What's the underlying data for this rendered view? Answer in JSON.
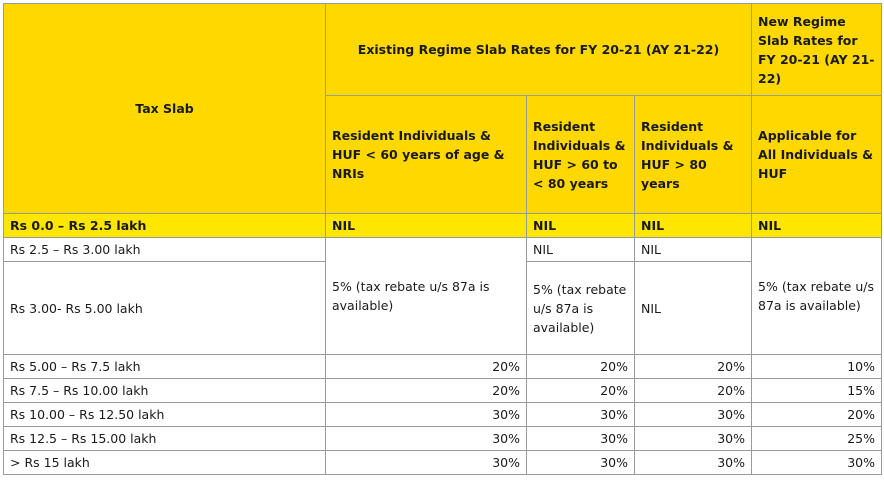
{
  "header": {
    "tax_slab": "Tax Slab",
    "existing_regime": "Existing Regime Slab Rates for FY 20-21 (AY 21-22)",
    "new_regime": "New Regime Slab Rates for FY 20-21 (AY 21-22)",
    "col_resident_60": "Resident Individuals & HUF < 60 years of age & NRIs",
    "col_resident_60_80": "Resident Individuals & HUF > 60 to < 80 years",
    "col_resident_80": "Resident Individuals & HUF > 80 years",
    "col_new_all": "Applicable for All Individuals & HUF"
  },
  "rows": {
    "r0": {
      "slab": "Rs 0.0 – Rs 2.5 lakh",
      "c1": "NIL",
      "c2": "NIL",
      "c3": "NIL",
      "c4": "NIL"
    },
    "r1": {
      "slab": "Rs 2.5 – Rs 3.00 lakh",
      "c2": "NIL",
      "c3": "NIL"
    },
    "r2": {
      "slab": "Rs 3.00- Rs 5.00 lakh",
      "c1": "5% (tax rebate u/s 87a is available)",
      "c2": "5% (tax rebate u/s 87a is available)",
      "c3": "NIL",
      "c4": "5% (tax rebate u/s 87a is available)"
    },
    "r3": {
      "slab": "Rs 5.00 – Rs 7.5 lakh",
      "c1": "20%",
      "c2": "20%",
      "c3": "20%",
      "c4": "10%"
    },
    "r4": {
      "slab": "Rs 7.5 – Rs 10.00 lakh",
      "c1": "20%",
      "c2": "20%",
      "c3": "20%",
      "c4": "15%"
    },
    "r5": {
      "slab": "Rs 10.00 – Rs 12.50 lakh",
      "c1": "30%",
      "c2": "30%",
      "c3": "30%",
      "c4": "20%"
    },
    "r6": {
      "slab": "Rs 12.5 – Rs 15.00 lakh",
      "c1": "30%",
      "c2": "30%",
      "c3": "30%",
      "c4": "25%"
    },
    "r7": {
      "slab": "> Rs 15 lakh",
      "c1": "30%",
      "c2": "30%",
      "c3": "30%",
      "c4": "30%"
    }
  }
}
